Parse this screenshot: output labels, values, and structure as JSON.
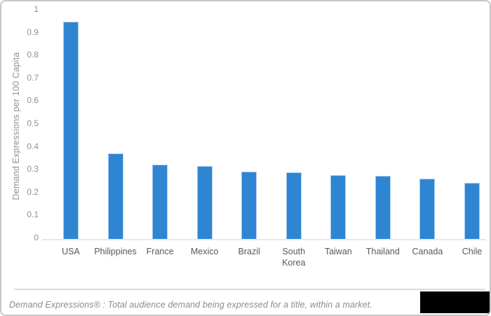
{
  "chart_data": {
    "type": "bar",
    "title": "",
    "xlabel": "",
    "ylabel": "Demand Expressions per 100 Capita",
    "categories": [
      "USA",
      "Philippines",
      "France",
      "Mexico",
      "Brazil",
      "South Korea",
      "Taiwan",
      "Thailand",
      "Canada",
      "Chile"
    ],
    "values": [
      0.95,
      0.375,
      0.325,
      0.32,
      0.295,
      0.29,
      0.28,
      0.275,
      0.265,
      0.245
    ],
    "ylim": [
      0,
      1
    ],
    "yticks": [
      0,
      0.1,
      0.2,
      0.3,
      0.4,
      0.5,
      0.6,
      0.7,
      0.8,
      0.9,
      1
    ],
    "ytick_labels": [
      "0",
      "0.1",
      "0.2",
      "0.3",
      "0.4",
      "0.5",
      "0.6",
      "0.7",
      "0.8",
      "0.9",
      "1"
    ],
    "grid": false,
    "legend": false,
    "bar_color": "#2E86D3"
  },
  "footer": {
    "text": "Demand Expressions® :  Total audience demand being expressed for a title, within a market."
  },
  "colors": {
    "bar": "#2E86D3",
    "bar_edge": "#A9CAEC",
    "axis_line": "#E8E8E8",
    "tick_label": "#8B9197",
    "axis_title": "#8B9197",
    "category_label": "#595959",
    "footer_text": "#8C8C8C",
    "separator_line": "#DCDCDC",
    "card_border": "#C6C6C6",
    "logo_block": "#000000"
  }
}
